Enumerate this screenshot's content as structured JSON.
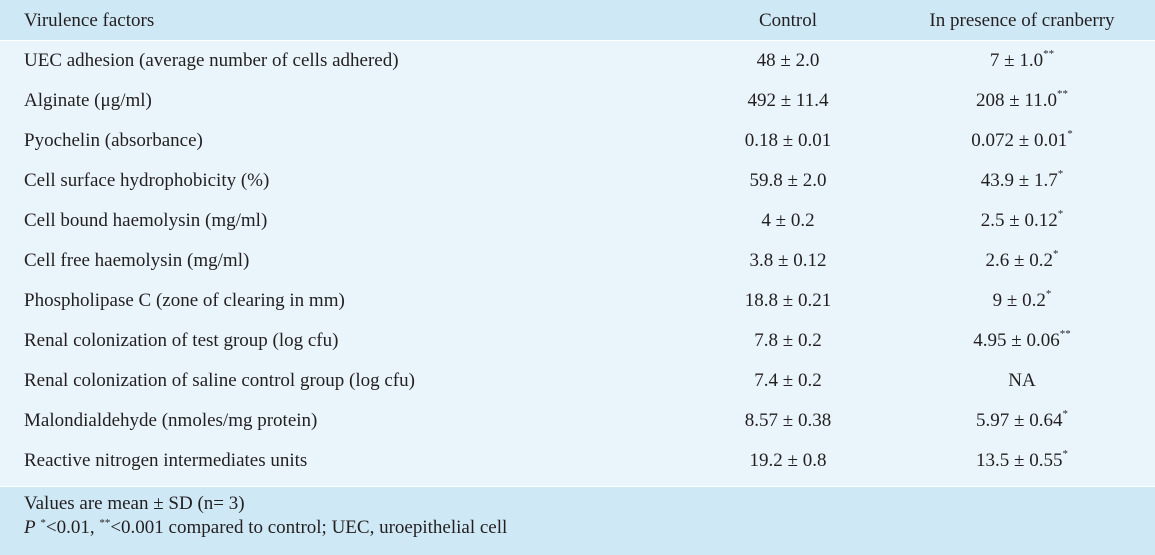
{
  "table": {
    "headers": {
      "factor": "Virulence factors",
      "control": "Control",
      "cranberry": "In presence of cranberry"
    },
    "rows": [
      {
        "factor": "UEC adhesion (average number of cells adhered)",
        "control": "48 ± 2.0",
        "cranberry": "7 ± 1.0",
        "sig": "**"
      },
      {
        "factor": "Alginate (μg/ml)",
        "control": "492 ± 11.4",
        "cranberry": "208 ± 11.0",
        "sig": "**"
      },
      {
        "factor": "Pyochelin (absorbance)",
        "control": "0.18 ± 0.01",
        "cranberry": "0.072 ± 0.01",
        "sig": "*"
      },
      {
        "factor": "Cell surface hydrophobicity (%)",
        "control": "59.8 ± 2.0",
        "cranberry": "43.9 ± 1.7",
        "sig": "*"
      },
      {
        "factor": "Cell bound haemolysin (mg/ml)",
        "control": "4 ± 0.2",
        "cranberry": "2.5 ± 0.12",
        "sig": "*"
      },
      {
        "factor": "Cell free haemolysin (mg/ml)",
        "control": "3.8 ± 0.12",
        "cranberry": "2.6 ± 0.2",
        "sig": "*"
      },
      {
        "factor": "Phospholipase C (zone of clearing in mm)",
        "control": "18.8 ± 0.21",
        "cranberry": "9 ± 0.2",
        "sig": "*"
      },
      {
        "factor": "Renal colonization of test group (log cfu)",
        "control": "7.8 ± 0.2",
        "cranberry": "4.95 ± 0.06",
        "sig": "**"
      },
      {
        "factor": "Renal colonization of saline control group (log cfu)",
        "control": "7.4 ± 0.2",
        "cranberry": "NA",
        "sig": ""
      },
      {
        "factor": "Malondialdehyde (nmoles/mg protein)",
        "control": "8.57 ± 0.38",
        "cranberry": "5.97 ± 0.64",
        "sig": "*"
      },
      {
        "factor": "Reactive nitrogen intermediates units",
        "control": "19.2 ± 0.8",
        "cranberry": "13.5 ± 0.55",
        "sig": "*"
      }
    ]
  },
  "footnotes": {
    "line1": "Values are mean ± SD (n= 3)",
    "p_label": "P",
    "sig1_mark": "*",
    "sig1_text": "<0.01, ",
    "sig2_mark": "**",
    "sig2_text": "<0.001 compared to control; UEC, uroepithelial cell"
  },
  "colors": {
    "header_bg": "#cfe8f5",
    "body_bg": "#eaf5fb",
    "text": "#231f20"
  }
}
